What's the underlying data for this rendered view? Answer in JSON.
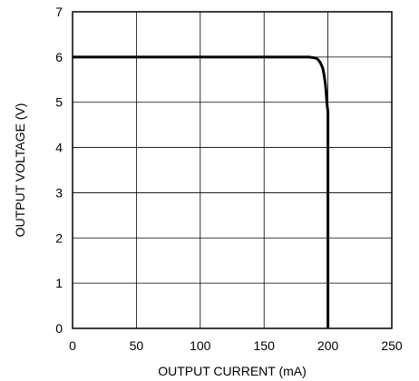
{
  "chart_data": {
    "type": "line",
    "title": "",
    "xlabel": "OUTPUT CURRENT (mA)",
    "ylabel": "OUTPUT VOLTAGE (V)",
    "xlim": [
      0,
      250
    ],
    "ylim": [
      0,
      7
    ],
    "xticks": [
      0,
      50,
      100,
      150,
      200,
      250
    ],
    "yticks": [
      0,
      1,
      2,
      3,
      4,
      5,
      6,
      7
    ],
    "grid": true,
    "series": [
      {
        "x": [
          0,
          185,
          190,
          192,
          194,
          196,
          197,
          198,
          198.5,
          199,
          199.5,
          200,
          200
        ],
        "y": [
          6.0,
          6.0,
          5.98,
          5.95,
          5.88,
          5.75,
          5.6,
          5.4,
          5.25,
          5.05,
          4.9,
          4.8,
          0
        ]
      }
    ],
    "line_color": "#000000"
  }
}
